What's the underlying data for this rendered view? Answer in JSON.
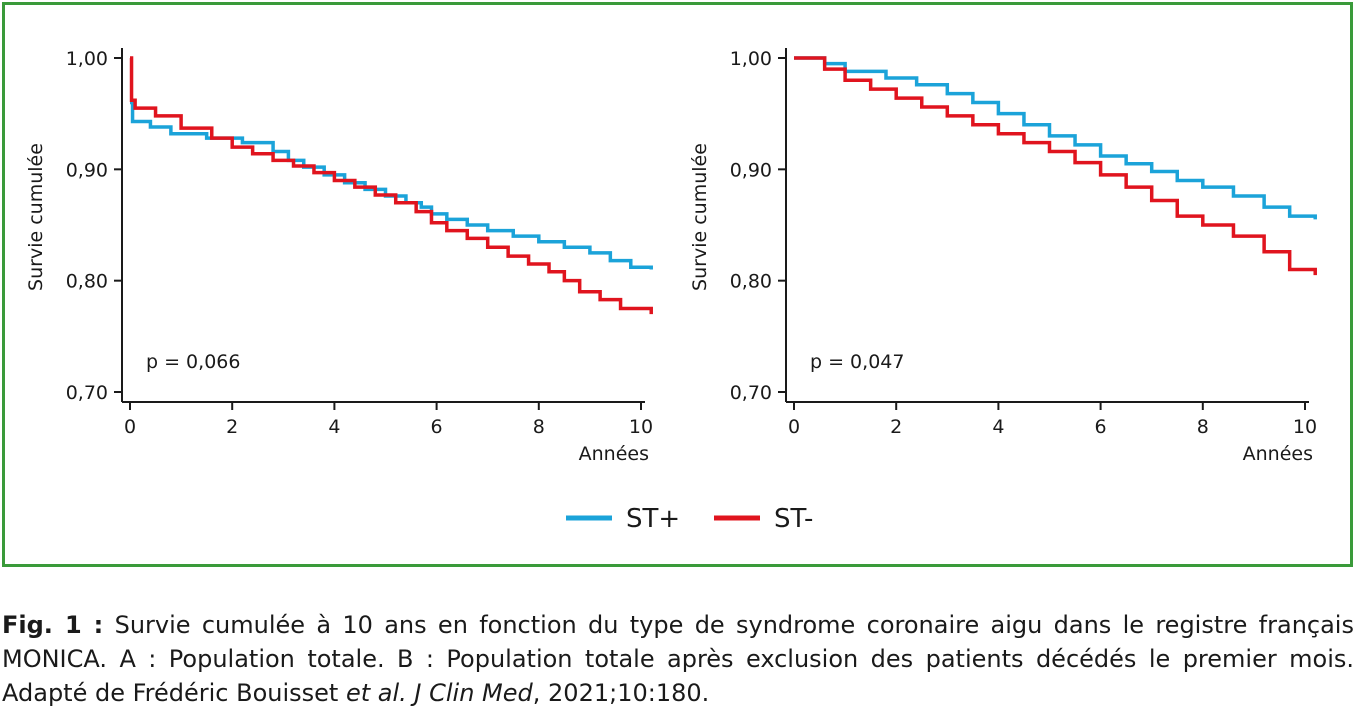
{
  "colors": {
    "frame": "#3a9a3a",
    "st_plus": "#1ba3d9",
    "st_minus": "#e0141e",
    "axis": "#1a1a1a"
  },
  "legend": [
    {
      "name": "ST+",
      "color": "#1ba3d9"
    },
    {
      "name": "ST-",
      "color": "#e0141e"
    }
  ],
  "caption": {
    "label": "Fig. 1 :",
    "text": " Survie cumulée à 10 ans en fonction du type de syndrome coronaire aigu dans le registre français MONICA. A : Population totale. B : Population totale après exclusion des patients décédés le premier mois. Adapté de Frédéric Bouisset ",
    "etal": "et al. J Clin Med",
    "tail": ", 2021;10:180."
  },
  "chart_data": [
    {
      "type": "line",
      "step": true,
      "ylabel": "Survie cumulée",
      "xlabel": "Années",
      "xlim": [
        0,
        10
      ],
      "ylim": [
        0.7,
        1.0
      ],
      "xticks": [
        "0",
        "2",
        "4",
        "6",
        "8",
        "10"
      ],
      "yticks": [
        "0,70",
        "0,80",
        "0,90",
        "1,00"
      ],
      "annotation": "p = 0,066",
      "series": [
        {
          "name": "ST+",
          "x": [
            0,
            0.05,
            0.4,
            0.8,
            1.5,
            2.2,
            2.8,
            3.1,
            3.4,
            3.8,
            4.2,
            4.6,
            5.0,
            5.4,
            5.7,
            5.9,
            6.2,
            6.6,
            7.0,
            7.5,
            8.0,
            8.5,
            9.0,
            9.4,
            9.8,
            10.2
          ],
          "y": [
            0.96,
            0.943,
            0.938,
            0.932,
            0.928,
            0.924,
            0.916,
            0.908,
            0.902,
            0.895,
            0.888,
            0.882,
            0.876,
            0.87,
            0.866,
            0.86,
            0.855,
            0.85,
            0.845,
            0.84,
            0.835,
            0.83,
            0.825,
            0.818,
            0.812,
            0.81
          ]
        },
        {
          "name": "ST-",
          "x": [
            0,
            0.03,
            0.1,
            0.5,
            1.0,
            1.6,
            2.0,
            2.4,
            2.8,
            3.2,
            3.6,
            4.0,
            4.4,
            4.8,
            5.2,
            5.6,
            5.9,
            6.2,
            6.6,
            7.0,
            7.4,
            7.8,
            8.2,
            8.5,
            8.8,
            9.2,
            9.6,
            10.2
          ],
          "y": [
            1.0,
            0.962,
            0.955,
            0.948,
            0.937,
            0.928,
            0.92,
            0.914,
            0.908,
            0.903,
            0.897,
            0.89,
            0.884,
            0.877,
            0.87,
            0.862,
            0.852,
            0.845,
            0.838,
            0.83,
            0.822,
            0.815,
            0.808,
            0.8,
            0.79,
            0.783,
            0.775,
            0.77
          ]
        }
      ]
    },
    {
      "type": "line",
      "step": true,
      "ylabel": "Survie cumulée",
      "xlabel": "Années",
      "xlim": [
        0,
        10
      ],
      "ylim": [
        0.7,
        1.0
      ],
      "xticks": [
        "0",
        "2",
        "4",
        "6",
        "8",
        "10"
      ],
      "yticks": [
        "0,70",
        "0,80",
        "0,90",
        "1,00"
      ],
      "annotation": "p = 0,047",
      "series": [
        {
          "name": "ST+",
          "x": [
            0,
            0.6,
            1.0,
            1.8,
            2.4,
            3.0,
            3.5,
            4.0,
            4.5,
            5.0,
            5.5,
            6.0,
            6.5,
            7.0,
            7.5,
            8.0,
            8.6,
            9.2,
            9.7,
            10.2
          ],
          "y": [
            1.0,
            0.995,
            0.988,
            0.982,
            0.976,
            0.968,
            0.96,
            0.95,
            0.94,
            0.93,
            0.922,
            0.912,
            0.905,
            0.898,
            0.89,
            0.884,
            0.876,
            0.866,
            0.858,
            0.855
          ]
        },
        {
          "name": "ST-",
          "x": [
            0,
            0.6,
            1.0,
            1.5,
            2.0,
            2.5,
            3.0,
            3.5,
            4.0,
            4.5,
            5.0,
            5.5,
            6.0,
            6.5,
            7.0,
            7.5,
            8.0,
            8.6,
            9.2,
            9.7,
            10.2
          ],
          "y": [
            1.0,
            0.99,
            0.98,
            0.972,
            0.964,
            0.956,
            0.948,
            0.94,
            0.932,
            0.924,
            0.916,
            0.906,
            0.895,
            0.884,
            0.872,
            0.858,
            0.85,
            0.84,
            0.826,
            0.81,
            0.805
          ]
        }
      ]
    }
  ]
}
